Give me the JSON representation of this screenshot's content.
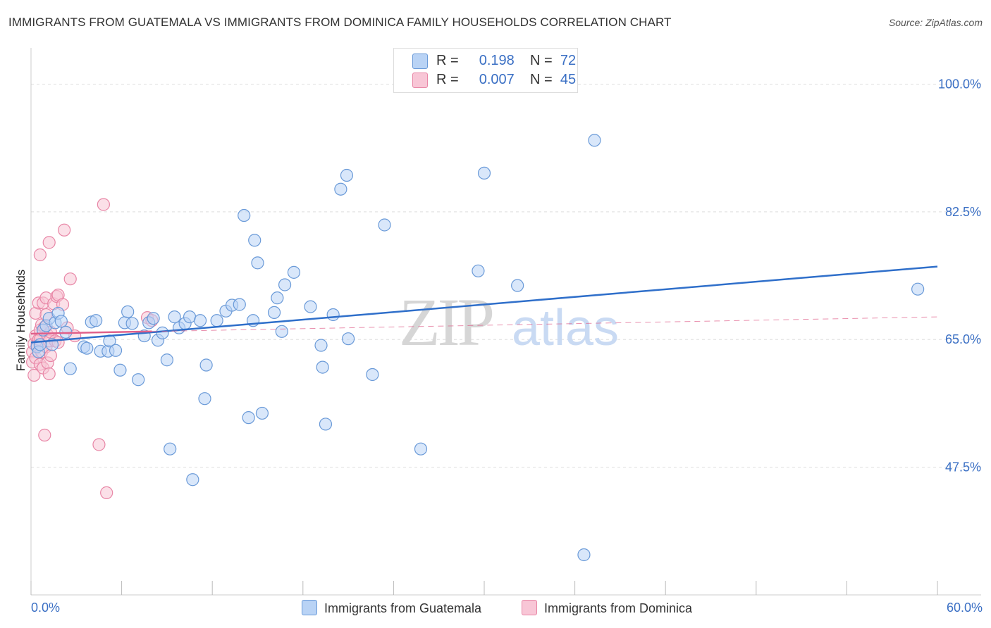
{
  "title": "IMMIGRANTS FROM GUATEMALA VS IMMIGRANTS FROM DOMINICA FAMILY HOUSEHOLDS CORRELATION CHART",
  "source": "Source: ZipAtlas.com",
  "watermark": {
    "zip": "ZIP",
    "atlas": "atlas"
  },
  "colors": {
    "blue_fill": "#b9d3f5",
    "blue_stroke": "#6a9ad8",
    "blue_line": "#2f6fca",
    "pink_fill": "#f8c6d6",
    "pink_stroke": "#e886a6",
    "pink_line": "#e0608a",
    "axis_text": "#3a6fc4",
    "grid": "#dddddd"
  },
  "legend": {
    "rows": [
      {
        "r_label": "R =",
        "r_value": "0.198",
        "n_label": "N =",
        "n_value": "72"
      },
      {
        "r_label": "R =",
        "r_value": "0.007",
        "n_label": "N =",
        "n_value": "45"
      }
    ]
  },
  "bottom_legend": {
    "series1": "Immigrants from Guatemala",
    "series2": "Immigrants from Dominica"
  },
  "chart_data": {
    "type": "scatter",
    "title": "IMMIGRANTS FROM GUATEMALA VS IMMIGRANTS FROM DOMINICA FAMILY HOUSEHOLDS CORRELATION CHART",
    "xlabel": "",
    "ylabel": "Family Households",
    "xlim": [
      0,
      60
    ],
    "ylim": [
      30,
      104
    ],
    "x_tick_labels": [
      "0.0%",
      "60.0%"
    ],
    "y_ticks": [
      47.5,
      65.0,
      82.5,
      100.0
    ],
    "y_tick_labels": [
      "47.5%",
      "65.0%",
      "82.5%",
      "100.0%"
    ],
    "series": [
      {
        "name": "Immigrants from Guatemala",
        "color": "blue",
        "points": [
          [
            0.4,
            64.0
          ],
          [
            0.5,
            63.3
          ],
          [
            0.6,
            64.3
          ],
          [
            0.8,
            66.3
          ],
          [
            1.0,
            66.9
          ],
          [
            1.2,
            67.9
          ],
          [
            1.4,
            64.3
          ],
          [
            1.6,
            67.3
          ],
          [
            1.8,
            68.6
          ],
          [
            2.0,
            67.5
          ],
          [
            2.3,
            66.0
          ],
          [
            2.6,
            61.0
          ],
          [
            3.5,
            64.0
          ],
          [
            3.7,
            63.8
          ],
          [
            4.0,
            67.4
          ],
          [
            4.3,
            67.6
          ],
          [
            4.6,
            63.4
          ],
          [
            5.1,
            63.4
          ],
          [
            5.2,
            64.8
          ],
          [
            5.6,
            63.5
          ],
          [
            5.9,
            60.8
          ],
          [
            6.2,
            67.3
          ],
          [
            6.4,
            68.8
          ],
          [
            6.7,
            67.2
          ],
          [
            7.1,
            59.5
          ],
          [
            7.5,
            65.5
          ],
          [
            7.8,
            67.3
          ],
          [
            8.1,
            67.9
          ],
          [
            8.4,
            64.9
          ],
          [
            8.7,
            65.9
          ],
          [
            9.0,
            62.2
          ],
          [
            9.2,
            50.0
          ],
          [
            9.5,
            68.1
          ],
          [
            9.8,
            66.6
          ],
          [
            10.2,
            67.2
          ],
          [
            10.5,
            68.1
          ],
          [
            10.7,
            45.8
          ],
          [
            11.2,
            67.6
          ],
          [
            11.5,
            56.9
          ],
          [
            11.6,
            61.5
          ],
          [
            12.3,
            67.6
          ],
          [
            12.9,
            68.9
          ],
          [
            13.3,
            69.7
          ],
          [
            13.8,
            69.8
          ],
          [
            14.1,
            82.0
          ],
          [
            14.4,
            54.3
          ],
          [
            14.7,
            67.6
          ],
          [
            14.8,
            78.6
          ],
          [
            15.0,
            75.5
          ],
          [
            15.3,
            54.9
          ],
          [
            16.1,
            68.7
          ],
          [
            16.3,
            70.7
          ],
          [
            16.6,
            66.1
          ],
          [
            16.8,
            72.5
          ],
          [
            17.4,
            74.2
          ],
          [
            18.5,
            69.5
          ],
          [
            19.2,
            64.2
          ],
          [
            19.3,
            61.2
          ],
          [
            19.5,
            53.4
          ],
          [
            20.0,
            68.4
          ],
          [
            20.5,
            85.6
          ],
          [
            20.9,
            87.5
          ],
          [
            21.0,
            65.1
          ],
          [
            22.6,
            60.2
          ],
          [
            23.4,
            80.7
          ],
          [
            25.8,
            50.0
          ],
          [
            29.6,
            74.4
          ],
          [
            30.0,
            87.8
          ],
          [
            32.2,
            72.4
          ],
          [
            37.3,
            92.3
          ],
          [
            36.6,
            35.5
          ],
          [
            58.7,
            71.9
          ]
        ],
        "trend": {
          "x": [
            0,
            60
          ],
          "y": [
            64.6,
            75.0
          ]
        }
      },
      {
        "name": "Immigrants from Dominica",
        "color": "pink",
        "points": [
          [
            0.1,
            63.3
          ],
          [
            0.1,
            61.9
          ],
          [
            0.2,
            60.1
          ],
          [
            0.2,
            64.4
          ],
          [
            0.3,
            65.5
          ],
          [
            0.3,
            62.5
          ],
          [
            0.3,
            68.6
          ],
          [
            0.4,
            64.2
          ],
          [
            0.5,
            65.0
          ],
          [
            0.5,
            70.0
          ],
          [
            0.6,
            66.3
          ],
          [
            0.6,
            76.6
          ],
          [
            0.6,
            65.0
          ],
          [
            0.6,
            61.6
          ],
          [
            0.7,
            67.0
          ],
          [
            0.7,
            63.3
          ],
          [
            0.8,
            70.0
          ],
          [
            0.8,
            61.1
          ],
          [
            0.9,
            66.7
          ],
          [
            0.9,
            51.9
          ],
          [
            1.0,
            70.7
          ],
          [
            1.0,
            68.4
          ],
          [
            1.0,
            64.0
          ],
          [
            1.1,
            61.8
          ],
          [
            1.1,
            65.6
          ],
          [
            1.2,
            78.3
          ],
          [
            1.2,
            64.8
          ],
          [
            1.2,
            60.3
          ],
          [
            1.3,
            66.0
          ],
          [
            1.3,
            62.8
          ],
          [
            1.5,
            69.9
          ],
          [
            1.6,
            64.8
          ],
          [
            1.7,
            70.9
          ],
          [
            1.8,
            71.1
          ],
          [
            1.8,
            64.6
          ],
          [
            2.1,
            69.8
          ],
          [
            2.2,
            80.0
          ],
          [
            2.4,
            66.6
          ],
          [
            2.6,
            73.3
          ],
          [
            2.9,
            65.5
          ],
          [
            4.5,
            50.6
          ],
          [
            4.8,
            83.5
          ],
          [
            5.0,
            44.0
          ],
          [
            7.7,
            68.0
          ],
          [
            8.0,
            67.6
          ]
        ],
        "trend": {
          "x": [
            0,
            60
          ],
          "y": [
            65.8,
            68.1
          ]
        }
      }
    ]
  }
}
